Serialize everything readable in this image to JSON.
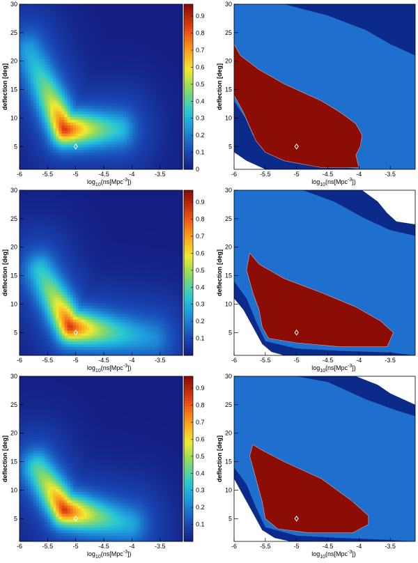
{
  "chart_data": [
    {
      "type": "heatmap",
      "xlabel": "log10(ns[Mpc-3])",
      "ylabel": "deflection [deg]",
      "xlim": [
        -6,
        -3.1
      ],
      "ylim": [
        1,
        30
      ],
      "xticks": [
        "-6",
        "-5.5",
        "-5",
        "-4.5",
        "-4",
        "-3.5"
      ],
      "yticks": [
        "5",
        "10",
        "15",
        "20",
        "25",
        "30"
      ],
      "zlim": [
        0,
        0.97
      ],
      "colorbar_ticks": [
        "0",
        "0.1",
        "0.2",
        "0.3",
        "0.4",
        "0.5",
        "0.6",
        "0.7",
        "0.8",
        "0.9"
      ],
      "best_fit_marker": {
        "x": -5.0,
        "y": 5
      },
      "ridge": {
        "peak_x": -5.2,
        "peak_y": 8,
        "left_x": -5.85,
        "left_y": 22,
        "right_x": -4.2,
        "right_y": 8
      },
      "contours": [
        {
          "level": "outer",
          "color": "#0b2a8a",
          "boundary": [
            [
              -6,
              30
            ],
            [
              -5.2,
              30
            ],
            [
              -4.5,
              28
            ],
            [
              -3.9,
              25
            ],
            [
              -3.5,
              23
            ],
            [
              -3.1,
              21
            ]
          ],
          "excluded_corner": [
            [
              -6,
              1
            ],
            [
              -5.85,
              1.5
            ],
            [
              -6,
              3
            ]
          ]
        },
        {
          "level": "middle",
          "color": "#1f6fcf",
          "boundary": [
            [
              -6,
              30
            ],
            [
              -3.1,
              30
            ]
          ],
          "lower": [
            [
              -6,
              3
            ],
            [
              -5.7,
              2
            ],
            [
              -5.4,
              1
            ]
          ]
        },
        {
          "level": "inner",
          "color": "#8b0d05",
          "polygon": [
            [
              -6,
              23
            ],
            [
              -5.9,
              21
            ],
            [
              -5.6,
              18.5
            ],
            [
              -5.2,
              16
            ],
            [
              -4.6,
              13
            ],
            [
              -4.3,
              11
            ],
            [
              -4.05,
              9
            ],
            [
              -3.95,
              7
            ],
            [
              -3.98,
              5
            ],
            [
              -4.05,
              3.5
            ],
            [
              -4.0,
              1.3
            ],
            [
              -4.6,
              1.3
            ],
            [
              -5.2,
              2.5
            ],
            [
              -5.5,
              4
            ],
            [
              -5.65,
              6
            ],
            [
              -5.75,
              8.5
            ],
            [
              -5.85,
              11
            ],
            [
              -6,
              14
            ]
          ]
        }
      ]
    },
    {
      "type": "heatmap",
      "xlabel": "log10(ns[Mpc-3])",
      "ylabel": "deflection [deg]",
      "xlim": [
        -6,
        -3.1
      ],
      "ylim": [
        1,
        30
      ],
      "xticks": [
        "-6",
        "-5.5",
        "-5",
        "-4.5",
        "-4",
        "-3.5"
      ],
      "yticks": [
        "5",
        "10",
        "15",
        "20",
        "25",
        "30"
      ],
      "zlim": [
        0,
        0.97
      ],
      "colorbar_ticks": [
        "0.1",
        "0.2",
        "0.3",
        "0.4",
        "0.5",
        "0.6",
        "0.7",
        "0.8",
        "0.9"
      ],
      "best_fit_marker": {
        "x": -5.0,
        "y": 5
      },
      "ridge": {
        "peak_x": -5.1,
        "peak_y": 6,
        "left_x": -5.65,
        "left_y": 16,
        "right_x": -3.6,
        "right_y": 4
      },
      "contours": [
        {
          "level": "outer",
          "color": "#0b2a8a",
          "white_corner": [
            [
              -3.9,
              30
            ],
            [
              -3.6,
              27
            ],
            [
              -3.5,
              25
            ],
            [
              -3.1,
              24
            ]
          ]
        },
        {
          "level": "middle",
          "color": "#1f6fcf"
        },
        {
          "level": "inner",
          "color": "#8b0d05",
          "polygon": [
            [
              -5.75,
              19
            ],
            [
              -5.6,
              17
            ],
            [
              -5.2,
              14.5
            ],
            [
              -4.6,
              12
            ],
            [
              -4.05,
              9.5
            ],
            [
              -3.65,
              7
            ],
            [
              -3.45,
              5
            ],
            [
              -3.55,
              2.5
            ],
            [
              -4.3,
              2.5
            ],
            [
              -5.0,
              3.2
            ],
            [
              -5.45,
              4
            ],
            [
              -5.55,
              6
            ],
            [
              -5.6,
              9
            ],
            [
              -5.7,
              12
            ],
            [
              -5.8,
              16
            ]
          ]
        }
      ]
    },
    {
      "type": "heatmap",
      "xlabel": "log10(ns[Mpc-3])",
      "ylabel": "deflection [deg]",
      "xlim": [
        -6,
        -3.1
      ],
      "ylim": [
        1,
        30
      ],
      "xticks": [
        "-6",
        "-5.5",
        "-5",
        "-4.5",
        "-4",
        "-3.5"
      ],
      "yticks": [
        "5",
        "10",
        "15",
        "20",
        "25",
        "30"
      ],
      "zlim": [
        0,
        0.97
      ],
      "colorbar_ticks": [
        "0.1",
        "0.2",
        "0.3",
        "0.4",
        "0.5",
        "0.6",
        "0.7",
        "0.8",
        "0.9"
      ],
      "best_fit_marker": {
        "x": -5.0,
        "y": 5
      },
      "ridge": {
        "peak_x": -5.2,
        "peak_y": 6.5,
        "left_x": -5.7,
        "left_y": 14,
        "right_x": -4.0,
        "right_y": 4
      },
      "contours": [
        {
          "level": "outer",
          "color": "#0b2a8a",
          "white_corner": [
            [
              -4.0,
              30
            ],
            [
              -3.6,
              28
            ],
            [
              -3.4,
              26
            ],
            [
              -3.1,
              25
            ]
          ]
        },
        {
          "level": "middle",
          "color": "#1f6fcf"
        },
        {
          "level": "inner",
          "color": "#8b0d05",
          "polygon": [
            [
              -5.7,
              18
            ],
            [
              -5.55,
              17
            ],
            [
              -5.2,
              15
            ],
            [
              -4.6,
              12
            ],
            [
              -4.1,
              8
            ],
            [
              -3.85,
              5.5
            ],
            [
              -3.85,
              4
            ],
            [
              -4.1,
              2.5
            ],
            [
              -4.8,
              2.5
            ],
            [
              -5.3,
              3.2
            ],
            [
              -5.5,
              5
            ],
            [
              -5.55,
              8
            ],
            [
              -5.65,
              12
            ],
            [
              -5.75,
              16
            ]
          ]
        }
      ]
    }
  ]
}
